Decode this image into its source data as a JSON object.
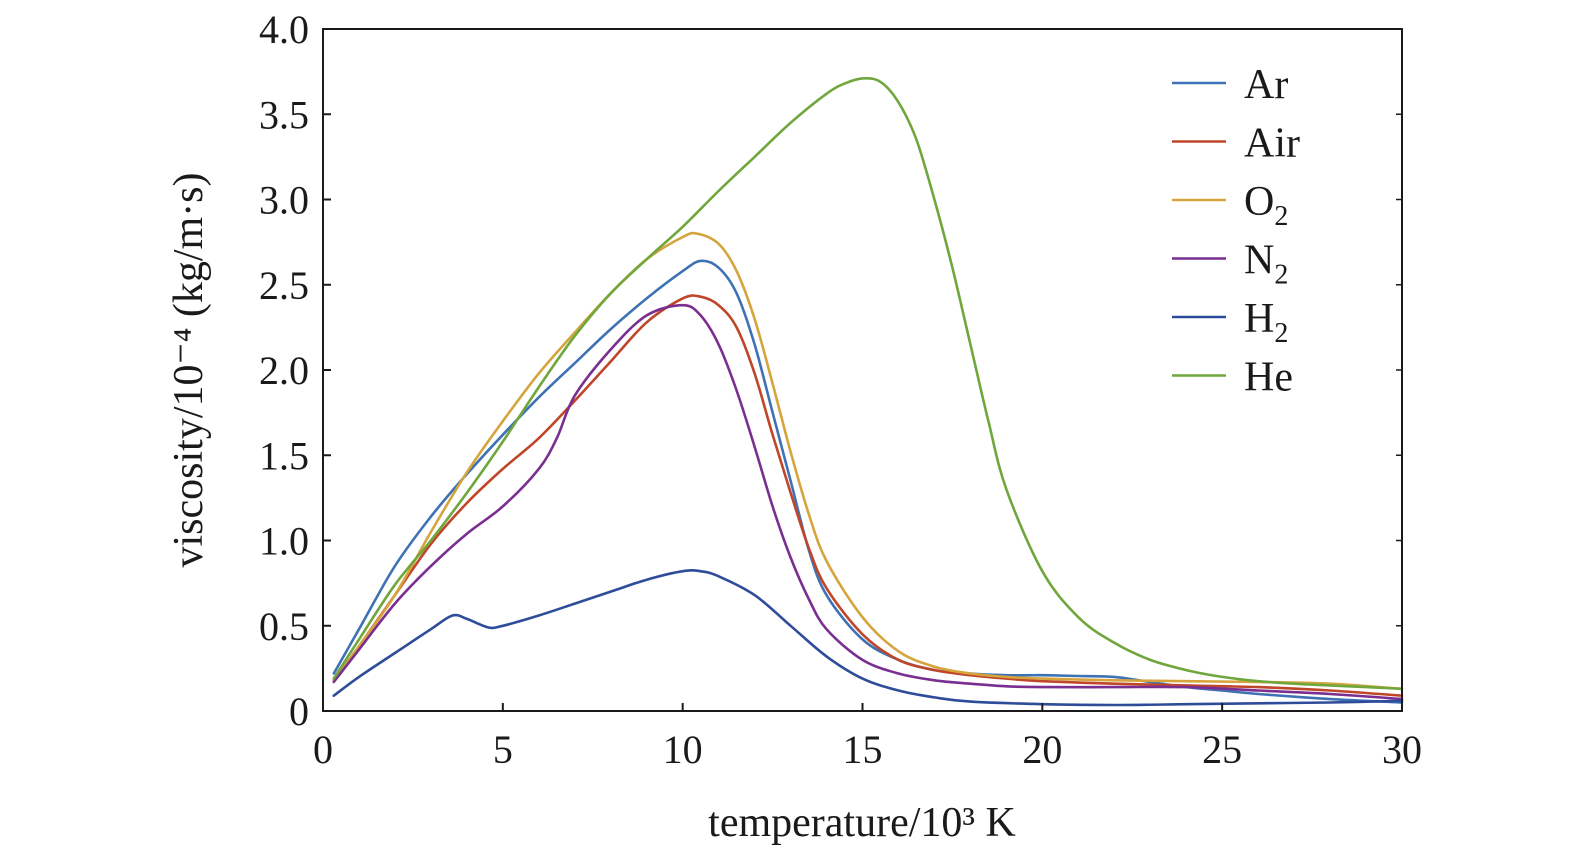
{
  "chart_data": {
    "type": "line",
    "xlabel": "temperature/10³ K",
    "ylabel": "viscosity/10⁻⁴ (kg/m·s)",
    "xlim": [
      0,
      30
    ],
    "ylim": [
      0,
      4.0
    ],
    "x_ticks": [
      0,
      5,
      10,
      15,
      20,
      25,
      30
    ],
    "x_tick_labels": [
      "0",
      "5",
      "10",
      "15",
      "20",
      "25",
      "30"
    ],
    "y_ticks": [
      0,
      0.5,
      1.0,
      1.5,
      2.0,
      2.5,
      3.0,
      3.5,
      4.0
    ],
    "y_tick_labels": [
      "0",
      "0.5",
      "1.0",
      "1.5",
      "2.0",
      "2.5",
      "3.0",
      "3.5",
      "4.0"
    ],
    "grid": false,
    "legend_position": "top-right",
    "series": [
      {
        "name": "Ar",
        "label_main": "Ar",
        "label_sub": "",
        "color": "#3f72b4",
        "points": [
          [
            0.3,
            0.22
          ],
          [
            1,
            0.48
          ],
          [
            2,
            0.85
          ],
          [
            3,
            1.14
          ],
          [
            4,
            1.39
          ],
          [
            5,
            1.62
          ],
          [
            6,
            1.84
          ],
          [
            7,
            2.04
          ],
          [
            8,
            2.24
          ],
          [
            9,
            2.42
          ],
          [
            10,
            2.58
          ],
          [
            10.5,
            2.64
          ],
          [
            11,
            2.6
          ],
          [
            11.5,
            2.45
          ],
          [
            12,
            2.15
          ],
          [
            12.5,
            1.75
          ],
          [
            13,
            1.35
          ],
          [
            13.5,
            0.95
          ],
          [
            14,
            0.68
          ],
          [
            15,
            0.42
          ],
          [
            16,
            0.3
          ],
          [
            17,
            0.24
          ],
          [
            18,
            0.22
          ],
          [
            19,
            0.21
          ],
          [
            20,
            0.21
          ],
          [
            21,
            0.205
          ],
          [
            22,
            0.2
          ],
          [
            23,
            0.17
          ],
          [
            24,
            0.14
          ],
          [
            25,
            0.12
          ],
          [
            26,
            0.1
          ],
          [
            28,
            0.07
          ],
          [
            30,
            0.05
          ]
        ]
      },
      {
        "name": "Air",
        "label_main": "Air",
        "label_sub": "",
        "color": "#c0462a",
        "points": [
          [
            0.3,
            0.18
          ],
          [
            1,
            0.38
          ],
          [
            2,
            0.68
          ],
          [
            3,
            0.98
          ],
          [
            4,
            1.22
          ],
          [
            5,
            1.42
          ],
          [
            6,
            1.6
          ],
          [
            7,
            1.82
          ],
          [
            8,
            2.05
          ],
          [
            9,
            2.28
          ],
          [
            10,
            2.42
          ],
          [
            10.5,
            2.43
          ],
          [
            11,
            2.38
          ],
          [
            11.5,
            2.25
          ],
          [
            12,
            1.98
          ],
          [
            12.5,
            1.62
          ],
          [
            13,
            1.28
          ],
          [
            13.5,
            0.96
          ],
          [
            14,
            0.72
          ],
          [
            15,
            0.45
          ],
          [
            16,
            0.3
          ],
          [
            17,
            0.24
          ],
          [
            18,
            0.21
          ],
          [
            19,
            0.19
          ],
          [
            20,
            0.175
          ],
          [
            22,
            0.16
          ],
          [
            24,
            0.15
          ],
          [
            26,
            0.14
          ],
          [
            28,
            0.12
          ],
          [
            30,
            0.09
          ]
        ]
      },
      {
        "name": "O₂",
        "label_main": "O",
        "label_sub": "2",
        "color": "#d6a43c",
        "points": [
          [
            0.3,
            0.18
          ],
          [
            1,
            0.38
          ],
          [
            2,
            0.68
          ],
          [
            3,
            1.05
          ],
          [
            4,
            1.4
          ],
          [
            5,
            1.7
          ],
          [
            6,
            1.98
          ],
          [
            7,
            2.22
          ],
          [
            8,
            2.45
          ],
          [
            9,
            2.65
          ],
          [
            10,
            2.78
          ],
          [
            10.4,
            2.8
          ],
          [
            11,
            2.74
          ],
          [
            11.5,
            2.58
          ],
          [
            12,
            2.3
          ],
          [
            12.5,
            1.92
          ],
          [
            13,
            1.52
          ],
          [
            13.5,
            1.16
          ],
          [
            14,
            0.88
          ],
          [
            15,
            0.55
          ],
          [
            16,
            0.35
          ],
          [
            17,
            0.26
          ],
          [
            18,
            0.22
          ],
          [
            19,
            0.2
          ],
          [
            20,
            0.19
          ],
          [
            22,
            0.18
          ],
          [
            24,
            0.175
          ],
          [
            26,
            0.17
          ],
          [
            28,
            0.16
          ],
          [
            30,
            0.13
          ]
        ]
      },
      {
        "name": "N₂",
        "label_main": "N",
        "label_sub": "2",
        "color": "#7a2f90",
        "points": [
          [
            0.3,
            0.17
          ],
          [
            1,
            0.36
          ],
          [
            2,
            0.63
          ],
          [
            3,
            0.85
          ],
          [
            4,
            1.04
          ],
          [
            5,
            1.2
          ],
          [
            6,
            1.42
          ],
          [
            6.5,
            1.6
          ],
          [
            7,
            1.85
          ],
          [
            8,
            2.12
          ],
          [
            9,
            2.32
          ],
          [
            10,
            2.38
          ],
          [
            10.5,
            2.32
          ],
          [
            11,
            2.15
          ],
          [
            11.5,
            1.88
          ],
          [
            12,
            1.55
          ],
          [
            12.5,
            1.2
          ],
          [
            13,
            0.9
          ],
          [
            13.5,
            0.66
          ],
          [
            14,
            0.48
          ],
          [
            15,
            0.3
          ],
          [
            16,
            0.22
          ],
          [
            17,
            0.18
          ],
          [
            18,
            0.16
          ],
          [
            19,
            0.145
          ],
          [
            20,
            0.14
          ],
          [
            22,
            0.14
          ],
          [
            24,
            0.14
          ],
          [
            26,
            0.12
          ],
          [
            28,
            0.1
          ],
          [
            30,
            0.07
          ]
        ]
      },
      {
        "name": "H₂",
        "label_main": "H",
        "label_sub": "2",
        "color": "#2e4c9a",
        "points": [
          [
            0.3,
            0.09
          ],
          [
            1,
            0.2
          ],
          [
            2,
            0.34
          ],
          [
            3,
            0.48
          ],
          [
            3.6,
            0.56
          ],
          [
            4,
            0.54
          ],
          [
            4.6,
            0.49
          ],
          [
            5,
            0.5
          ],
          [
            6,
            0.56
          ],
          [
            7,
            0.63
          ],
          [
            8,
            0.7
          ],
          [
            9,
            0.77
          ],
          [
            10,
            0.82
          ],
          [
            10.5,
            0.82
          ],
          [
            11,
            0.79
          ],
          [
            12,
            0.68
          ],
          [
            13,
            0.5
          ],
          [
            14,
            0.32
          ],
          [
            15,
            0.19
          ],
          [
            16,
            0.12
          ],
          [
            17,
            0.08
          ],
          [
            18,
            0.055
          ],
          [
            20,
            0.04
          ],
          [
            22,
            0.035
          ],
          [
            24,
            0.04
          ],
          [
            26,
            0.045
          ],
          [
            28,
            0.05
          ],
          [
            30,
            0.06
          ]
        ]
      },
      {
        "name": "He",
        "label_main": "He",
        "label_sub": "",
        "color": "#6fa73d",
        "points": [
          [
            0.3,
            0.19
          ],
          [
            1,
            0.42
          ],
          [
            2,
            0.74
          ],
          [
            3,
            1.0
          ],
          [
            4,
            1.28
          ],
          [
            5,
            1.58
          ],
          [
            6,
            1.9
          ],
          [
            7,
            2.2
          ],
          [
            8,
            2.45
          ],
          [
            9,
            2.65
          ],
          [
            10,
            2.84
          ],
          [
            11,
            3.05
          ],
          [
            12,
            3.25
          ],
          [
            13,
            3.45
          ],
          [
            14,
            3.62
          ],
          [
            14.5,
            3.68
          ],
          [
            15,
            3.71
          ],
          [
            15.5,
            3.69
          ],
          [
            16,
            3.57
          ],
          [
            16.5,
            3.35
          ],
          [
            17,
            3.0
          ],
          [
            17.5,
            2.6
          ],
          [
            18,
            2.15
          ],
          [
            18.5,
            1.7
          ],
          [
            19,
            1.3
          ],
          [
            20,
            0.82
          ],
          [
            21,
            0.55
          ],
          [
            22,
            0.4
          ],
          [
            23,
            0.3
          ],
          [
            24,
            0.24
          ],
          [
            25,
            0.2
          ],
          [
            26,
            0.175
          ],
          [
            27,
            0.16
          ],
          [
            28,
            0.15
          ],
          [
            29,
            0.14
          ],
          [
            30,
            0.13
          ]
        ]
      }
    ]
  }
}
